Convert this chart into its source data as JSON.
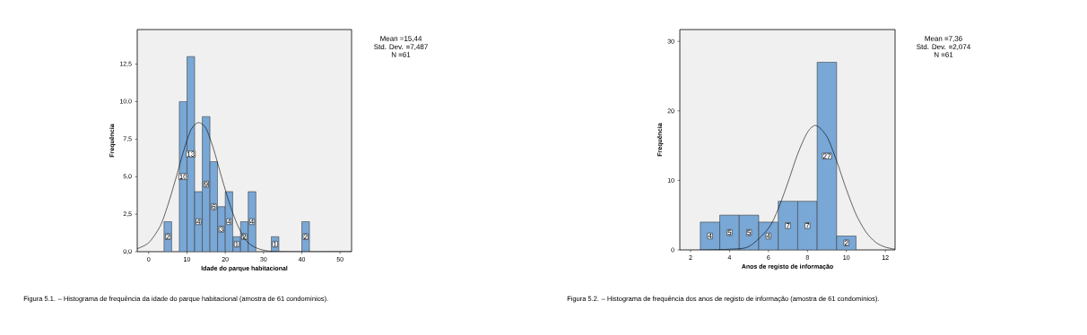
{
  "chart_data": [
    {
      "type": "histogram",
      "xlabel": "Idade do parque habitacional",
      "ylabel": "Frequência",
      "bins": [
        4,
        6,
        8,
        10,
        12,
        14,
        16,
        18,
        20,
        22,
        24,
        26,
        28,
        30,
        32,
        34,
        36,
        38,
        40,
        42
      ],
      "series": [
        {
          "type": "histogram",
          "color": "#79a7d6",
          "values": [
            2,
            0,
            10,
            13,
            4,
            9,
            6,
            3,
            4,
            1,
            2,
            4,
            0,
            0,
            1,
            0,
            0,
            0,
            2
          ],
          "value_labels": [
            "2",
            null,
            "10",
            "13",
            "4",
            "9",
            "6",
            "3",
            "4",
            "1",
            "2",
            "4",
            null,
            null,
            "1",
            null,
            null,
            null,
            "2"
          ]
        },
        {
          "type": "line",
          "color": "#000000",
          "x": [
            -3,
            0,
            3,
            5,
            7,
            9,
            11,
            13,
            15,
            17,
            19,
            21,
            23,
            25,
            27,
            30,
            35,
            53
          ],
          "values": [
            0.2,
            0.6,
            1.7,
            3.1,
            4.8,
            6.6,
            8.1,
            8.6,
            8.2,
            6.8,
            5.0,
            3.3,
            1.9,
            0.9,
            0.4,
            0.1,
            0,
            0
          ]
        }
      ],
      "xlim": [
        -3,
        53
      ],
      "ylim": [
        0,
        14.8
      ],
      "xticks": [
        0,
        10,
        20,
        30,
        40,
        50
      ],
      "yticks": [
        {
          "value": 0,
          "label": "0,0"
        },
        {
          "value": 2.5,
          "label": "2,5"
        },
        {
          "value": 5,
          "label": "5,0"
        },
        {
          "value": 7.5,
          "label": "7,5"
        },
        {
          "value": 10,
          "label": "10,0"
        },
        {
          "value": 12.5,
          "label": "12,5"
        }
      ],
      "annotations": [
        "Mean =15,44",
        "Std. Dev. =7,487",
        "N =61",
        "Figura 5.1. – Histograma de frequência da idade do parque habitacional (amostra de 61 condomínios)."
      ]
    },
    {
      "type": "histogram",
      "xlabel": "Anos de registo de informação",
      "ylabel": "Frequência",
      "bins": [
        2.5,
        3.5,
        4.5,
        5.5,
        6.5,
        7.5,
        8.5,
        9.5,
        10.5
      ],
      "series": [
        {
          "type": "histogram",
          "color": "#79a7d6",
          "values": [
            4,
            5,
            5,
            4,
            7,
            7,
            27,
            2
          ],
          "value_labels": [
            "4",
            "5",
            "5",
            "4",
            "7",
            "7",
            "27",
            "2"
          ]
        },
        {
          "type": "line",
          "color": "#000000",
          "x": [
            2.5,
            4,
            5,
            6,
            6.5,
            7,
            7.5,
            8,
            8.44,
            9,
            9.5,
            10,
            10.5,
            11,
            11.5,
            12,
            12.5
          ],
          "values": [
            0,
            0.1,
            0.5,
            3.1,
            5.9,
            9.7,
            13.8,
            16.9,
            17.9,
            16.3,
            12.8,
            8.7,
            5.1,
            2.6,
            1.1,
            0.4,
            0.1
          ]
        }
      ],
      "xlim": [
        1.45,
        12.5
      ],
      "ylim": [
        0,
        31.7
      ],
      "xticks": [
        2,
        4,
        6,
        8,
        10,
        12
      ],
      "yticks": [
        0,
        10,
        20,
        30
      ],
      "annotations": [
        "Mean =7,36",
        "Std. Dev. =2,074",
        "N =61",
        "Figura 5.2. – Histograma de frequência dos anos de registo de informação (amostra de 61 condomínios)."
      ]
    }
  ]
}
